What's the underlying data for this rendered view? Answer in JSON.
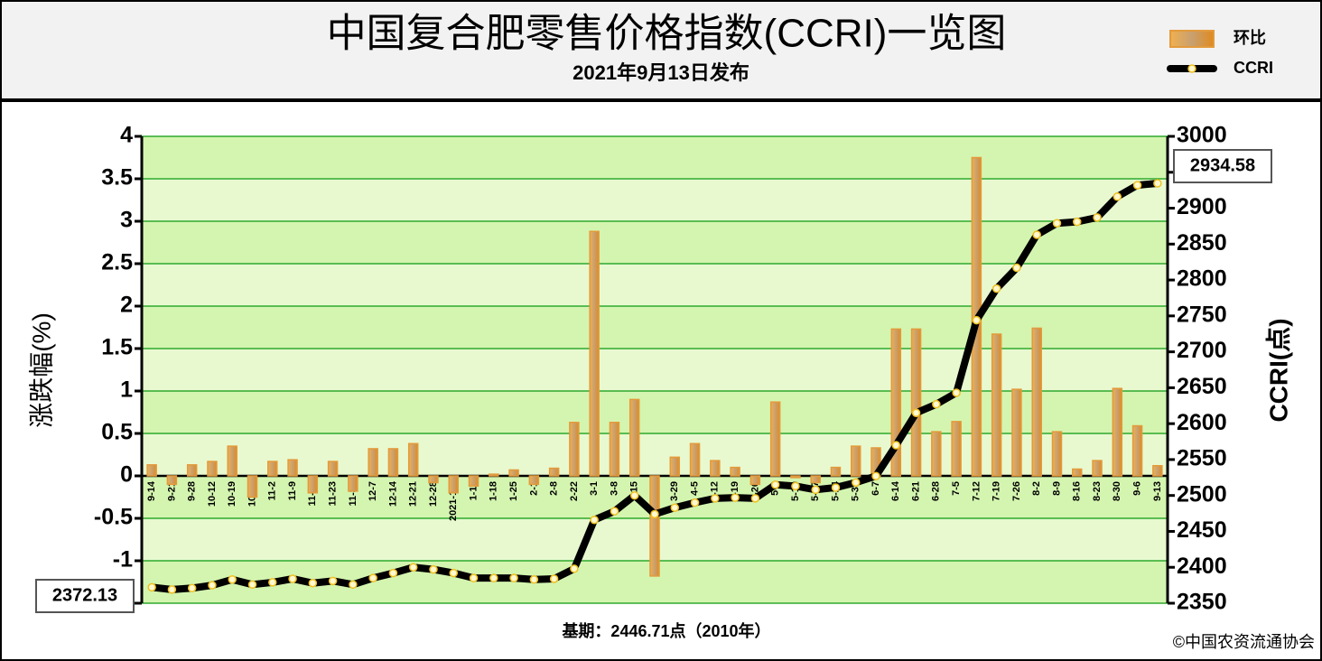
{
  "chart_data": {
    "type": "bar",
    "title": "中国复合肥零售价格指数(CCRI)一览图",
    "subtitle": "2021年9月13日发布",
    "ylabel": "涨跌幅(%)",
    "y2label": "CCRI(点)",
    "note": "基期：2446.71点（2010年）",
    "source": "©中国农资流通协会",
    "legend": "top-right",
    "grid": true,
    "categories": [
      "9-14",
      "9-21",
      "9-28",
      "10-12",
      "10-19",
      "10-26",
      "11-2",
      "11-9",
      "11-16",
      "11-23",
      "11-30",
      "12-7",
      "12-14",
      "12-21",
      "12-28",
      "2021-1-4",
      "1-11",
      "1-18",
      "1-25",
      "2-1",
      "2-8",
      "2-22",
      "3-1",
      "3-8",
      "3-15",
      "3-22",
      "3-29",
      "4-5",
      "4-12",
      "4-19",
      "4-26",
      "5-3",
      "5-10",
      "5-17",
      "5-24",
      "5-31",
      "6-7",
      "6-14",
      "6-21",
      "6-28",
      "7-5",
      "7-12",
      "7-19",
      "7-26",
      "8-2",
      "8-9",
      "8-16",
      "8-23",
      "8-30",
      "9-6",
      "9-13"
    ],
    "series": [
      {
        "name": "环比",
        "type": "bar",
        "color": "#e39a3b",
        "values": [
          0.13,
          -0.1,
          0.13,
          0.17,
          0.35,
          -0.25,
          0.17,
          0.19,
          -0.2,
          0.17,
          -0.18,
          0.32,
          0.32,
          0.38,
          -0.08,
          -0.2,
          -0.12,
          0.02,
          0.07,
          -0.1,
          0.09,
          0.63,
          2.88,
          0.63,
          0.9,
          -1.18,
          0.22,
          0.38,
          0.18,
          0.1,
          -0.1,
          0.87,
          -0.02,
          -0.08,
          0.1,
          0.35,
          0.33,
          1.73,
          1.73,
          0.52,
          0.64,
          3.75,
          1.67,
          1.02,
          1.74,
          0.52,
          0.08,
          0.18,
          1.03,
          0.59,
          0.12
        ]
      },
      {
        "name": "CCRI",
        "type": "line",
        "axis": "y2",
        "color": "#000000",
        "values": [
          2372.13,
          2369,
          2371,
          2375,
          2383,
          2376,
          2379,
          2384,
          2378,
          2381,
          2376,
          2385,
          2392,
          2400,
          2397,
          2392,
          2385,
          2385,
          2385,
          2383,
          2384,
          2398,
          2466,
          2478,
          2500,
          2474,
          2483,
          2490,
          2496,
          2497,
          2496,
          2515,
          2513,
          2508,
          2511,
          2518,
          2527,
          2570,
          2615,
          2627,
          2643,
          2744,
          2788,
          2817,
          2863,
          2879,
          2881,
          2887,
          2916,
          2932,
          2934.58
        ]
      }
    ],
    "ylim": [
      -1.5,
      4
    ],
    "yticks": [
      4,
      3.5,
      3,
      2.5,
      2,
      1.5,
      1,
      0.5,
      0,
      -0.5,
      -1,
      -1.5
    ],
    "y2lim": [
      2350,
      3000
    ],
    "y2ticks": [
      3000,
      2950,
      2900,
      2850,
      2800,
      2750,
      2700,
      2650,
      2600,
      2550,
      2500,
      2450,
      2400,
      2350
    ]
  }
}
